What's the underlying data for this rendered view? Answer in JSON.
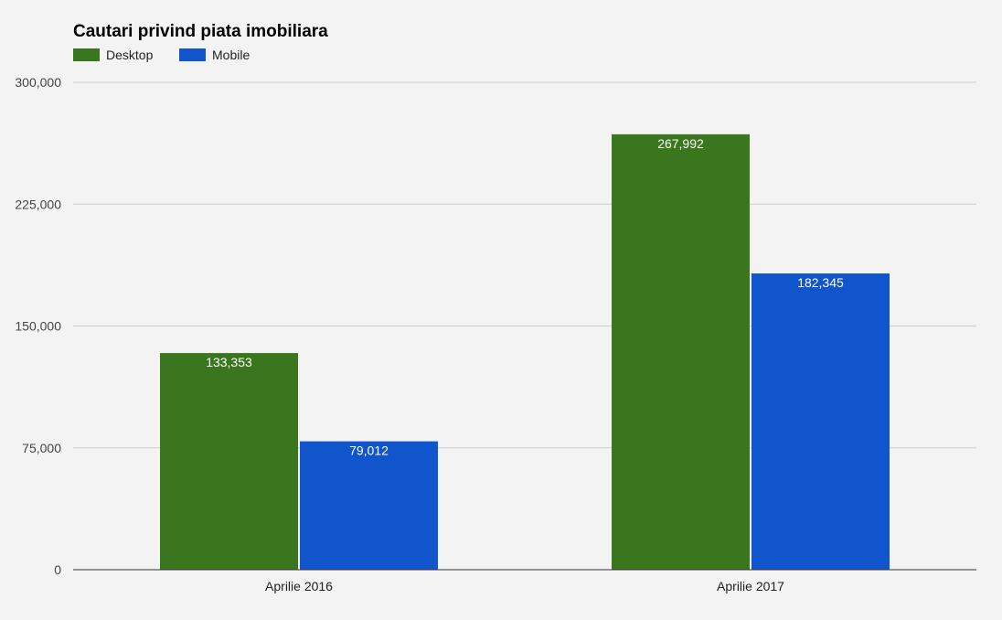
{
  "chart_data": {
    "type": "bar",
    "title": "Cautari privind piata imobiliara",
    "categories": [
      "Aprilie 2016",
      "Aprilie 2017"
    ],
    "series": [
      {
        "name": "Desktop",
        "color": "#3a761d",
        "values": [
          133353,
          267992
        ],
        "labels": [
          "133,353",
          "267,992"
        ]
      },
      {
        "name": "Mobile",
        "color": "#1155cc",
        "values": [
          79012,
          182345
        ],
        "labels": [
          "79,012",
          "182,345"
        ]
      }
    ],
    "ylim": [
      0,
      300000
    ],
    "yticks": [
      0,
      75000,
      150000,
      225000,
      300000
    ],
    "ytick_labels": [
      "0",
      "75,000",
      "150,000",
      "225,000",
      "300,000"
    ],
    "legend_position": "top-left",
    "grid": true
  }
}
